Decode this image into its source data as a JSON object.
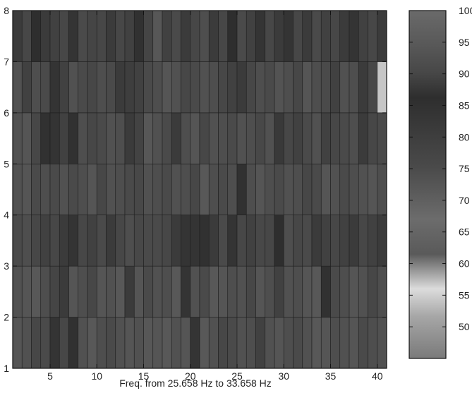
{
  "chart_data": {
    "type": "heatmap",
    "title": "",
    "xlabel": "Freq. from 25.658 Hz to 33.658 Hz",
    "ylabel": "",
    "xlim": [
      1,
      41
    ],
    "ylim": [
      1,
      8
    ],
    "x_ticks": [
      5,
      10,
      15,
      20,
      25,
      30,
      35,
      40
    ],
    "y_ticks": [
      1,
      2,
      3,
      4,
      5,
      6,
      7,
      8
    ],
    "x_tick_labels": [
      "5",
      "10",
      "15",
      "20",
      "25",
      "30",
      "35",
      "40"
    ],
    "y_tick_labels": [
      "1",
      "2",
      "3",
      "4",
      "5",
      "6",
      "7",
      "8"
    ],
    "colorbar": {
      "range": [
        45,
        100
      ],
      "ticks": [
        50,
        55,
        60,
        65,
        70,
        75,
        80,
        85,
        90,
        95,
        100
      ],
      "tick_labels": [
        "50",
        "55",
        "60",
        "65",
        "70",
        "75",
        "80",
        "85",
        "90",
        "95",
        "100"
      ]
    },
    "grid": false,
    "rows": [
      {
        "y_range": [
          1,
          2
        ],
        "values": [
          94,
          93,
          90,
          91,
          87,
          90,
          85,
          93,
          95,
          92,
          91,
          93,
          94,
          93,
          72,
          94,
          95,
          93,
          94,
          87,
          95,
          93,
          90,
          91,
          93,
          92,
          89,
          93,
          94,
          92,
          91,
          93,
          95,
          94,
          92,
          93,
          94,
          91,
          92,
          93
        ]
      },
      {
        "y_range": [
          2,
          3
        ],
        "values": [
          93,
          94,
          95,
          92,
          77,
          88,
          94,
          92,
          90,
          94,
          93,
          95,
          88,
          94,
          91,
          93,
          92,
          95,
          84,
          93,
          91,
          95,
          94,
          92,
          93,
          90,
          94,
          92,
          89,
          93,
          92,
          94,
          95,
          85,
          91,
          92,
          94,
          93,
          90,
          92
        ]
      },
      {
        "y_range": [
          3,
          4
        ],
        "values": [
          91,
          92,
          90,
          89,
          90,
          88,
          87,
          90,
          89,
          91,
          88,
          90,
          92,
          76,
          75,
          91,
          90,
          88,
          87,
          84,
          85,
          88,
          91,
          87,
          90,
          89,
          76,
          90,
          86,
          92,
          90,
          91,
          88,
          89,
          90,
          89,
          88,
          90,
          89,
          88
        ]
      },
      {
        "y_range": [
          4,
          5
        ],
        "values": [
          93,
          94,
          91,
          92,
          75,
          93,
          91,
          92,
          94,
          90,
          93,
          92,
          91,
          76,
          93,
          92,
          91,
          93,
          92,
          90,
          95,
          92,
          91,
          92,
          85,
          92,
          94,
          92,
          91,
          93,
          92,
          90,
          91,
          94,
          93,
          91,
          92,
          93,
          94,
          92
        ]
      },
      {
        "y_range": [
          5,
          6
        ],
        "values": [
          93,
          94,
          90,
          85,
          87,
          89,
          85,
          92,
          90,
          91,
          93,
          92,
          88,
          78,
          72,
          93,
          91,
          88,
          92,
          94,
          90,
          93,
          92,
          91,
          93,
          92,
          76,
          93,
          82,
          90,
          89,
          91,
          93,
          89,
          90,
          91,
          92,
          88,
          90,
          91
        ]
      },
      {
        "y_range": [
          6,
          7
        ],
        "values": [
          93,
          89,
          92,
          75,
          87,
          89,
          93,
          91,
          90,
          92,
          91,
          88,
          80,
          89,
          91,
          92,
          94,
          93,
          90,
          91,
          93,
          92,
          90,
          89,
          88,
          90,
          92,
          91,
          73,
          92,
          90,
          94,
          92,
          91,
          89,
          93,
          92,
          88,
          90,
          57
        ]
      },
      {
        "y_range": [
          7,
          8
        ],
        "values": [
          88,
          90,
          86,
          88,
          89,
          90,
          84,
          91,
          77,
          90,
          88,
          90,
          89,
          85,
          77,
          72,
          89,
          91,
          88,
          90,
          92,
          88,
          90,
          86,
          91,
          89,
          87,
          90,
          88,
          84,
          90,
          88,
          91,
          89,
          90,
          88,
          87,
          89,
          90,
          88
        ]
      }
    ]
  }
}
